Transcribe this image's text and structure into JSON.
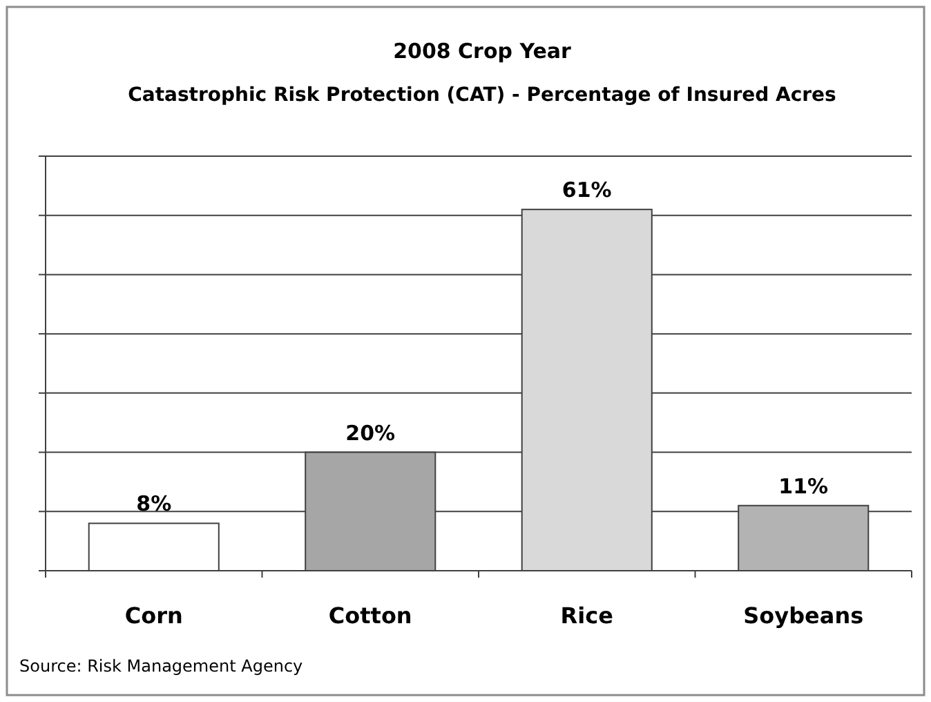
{
  "chart_data": {
    "type": "bar",
    "title": "2008 Crop Year",
    "subtitle": "Catastrophic Risk Protection (CAT) - Percentage of Insured Acres",
    "categories": [
      "Corn",
      "Cotton",
      "Rice",
      "Soybeans"
    ],
    "values": [
      8,
      20,
      61,
      11
    ],
    "colors": [
      "#ffffff",
      "#a6a6a6",
      "#d9d9d9",
      "#b3b3b3"
    ],
    "value_labels": [
      "8%",
      "20%",
      "61%",
      "11%"
    ],
    "ylim": [
      0,
      70
    ],
    "yticks": [
      {
        "value": 0,
        "label": null
      },
      {
        "value": 10,
        "label": null
      },
      {
        "value": 20,
        "label": null
      },
      {
        "value": 30,
        "label": null
      },
      {
        "value": 40,
        "label": null
      },
      {
        "value": 50,
        "label": null
      },
      {
        "value": 60,
        "label": null
      },
      {
        "value": 70,
        "label": null
      }
    ],
    "tick_labels": "x",
    "grid": "y",
    "annotations": [
      "Source: Risk Management Agency"
    ]
  }
}
